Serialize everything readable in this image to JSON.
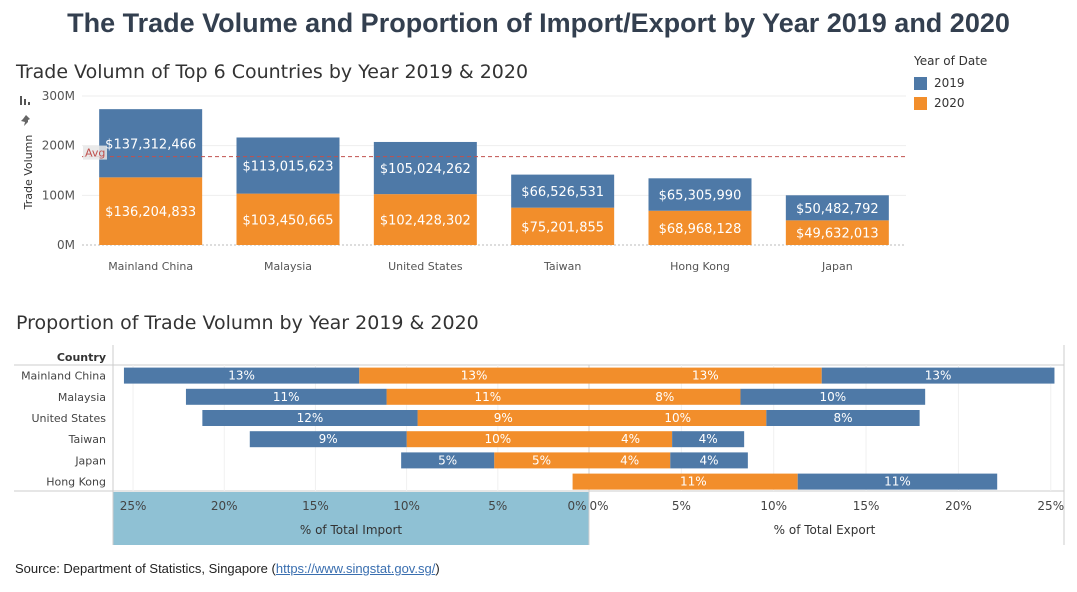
{
  "title": "The Trade Volume and Proportion of Import/Export by Year 2019 and 2020",
  "colors": {
    "y2019": "#4e79a7",
    "y2020": "#f28e2b",
    "import_panel": "#8fc1d4",
    "avg_line": "#c0504d"
  },
  "legend": {
    "title": "Year of Date",
    "items": [
      {
        "label": "2019"
      },
      {
        "label": "2020"
      }
    ]
  },
  "toolbar": {
    "icons": [
      "bar-chart-icon",
      "pin-icon"
    ]
  },
  "chart_data": [
    {
      "type": "bar",
      "stacked": true,
      "title": "Trade Volumn of Top 6 Countries by Year 2019 & 2020",
      "ylabel": "Trade Volumn",
      "xlabel": "",
      "ylim": [
        0,
        300000000
      ],
      "yticks": [
        {
          "value": 0,
          "label": "0M"
        },
        {
          "value": 100000000,
          "label": "100M"
        },
        {
          "value": 200000000,
          "label": "200M"
        },
        {
          "value": 300000000,
          "label": "300M"
        }
      ],
      "reference_line": {
        "label": "Avg",
        "value": 178000000
      },
      "categories": [
        "Mainland China",
        "Malaysia",
        "United States",
        "Taiwan",
        "Hong Kong",
        "Japan"
      ],
      "series": [
        {
          "name": "2020",
          "values": [
            136204833,
            103450665,
            102428302,
            75201855,
            68968128,
            49632013
          ],
          "labels": [
            "$136,204,833",
            "$103,450,665",
            "$102,428,302",
            "$75,201,855",
            "$68,968,128",
            "$49,632,013"
          ]
        },
        {
          "name": "2019",
          "values": [
            137312466,
            113015623,
            105024262,
            66526531,
            65305990,
            50482792
          ],
          "labels": [
            "$137,312,466",
            "$113,015,623",
            "$105,024,262",
            "$66,526,531",
            "$65,305,990",
            "$50,482,792"
          ]
        }
      ]
    },
    {
      "type": "bar",
      "orientation": "horizontal",
      "diverging": true,
      "title": "Proportion of Trade Volumn by Year 2019 & 2020",
      "row_header": "Country",
      "categories": [
        "Mainland China",
        "Malaysia",
        "United States",
        "Taiwan",
        "Japan",
        "Hong Kong"
      ],
      "import": {
        "axis_label": "% of Total Import",
        "ticks": [
          "25%",
          "20%",
          "15%",
          "10%",
          "5%",
          "0%"
        ],
        "series": [
          {
            "name": "2020",
            "values": [
              12.6,
              11.1,
              9.4,
              10.0,
              5.2,
              0.9
            ],
            "labels": [
              "13%",
              "11%",
              "9%",
              "10%",
              "5%",
              ""
            ]
          },
          {
            "name": "2019",
            "values": [
              12.9,
              11.0,
              11.8,
              8.6,
              5.1,
              0.0
            ],
            "labels": [
              "13%",
              "11%",
              "12%",
              "9%",
              "5%",
              ""
            ]
          }
        ]
      },
      "export": {
        "axis_label": "% of Total Export",
        "ticks": [
          "0%",
          "5%",
          "10%",
          "15%",
          "20%",
          "25%"
        ],
        "series": [
          {
            "name": "2020",
            "values": [
              12.6,
              8.2,
              9.6,
              4.5,
              4.4,
              11.3
            ],
            "labels": [
              "13%",
              "8%",
              "10%",
              "4%",
              "4%",
              "11%"
            ]
          },
          {
            "name": "2019",
            "values": [
              12.6,
              10.0,
              8.3,
              3.9,
              4.2,
              10.8
            ],
            "labels": [
              "13%",
              "10%",
              "8%",
              "4%",
              "4%",
              "11%"
            ]
          }
        ]
      },
      "xlim": [
        0,
        25
      ]
    }
  ],
  "source": {
    "prefix": "Source: Department of Statistics, Singapore (",
    "link": "https://www.singstat.gov.sg/",
    "suffix": ")"
  }
}
